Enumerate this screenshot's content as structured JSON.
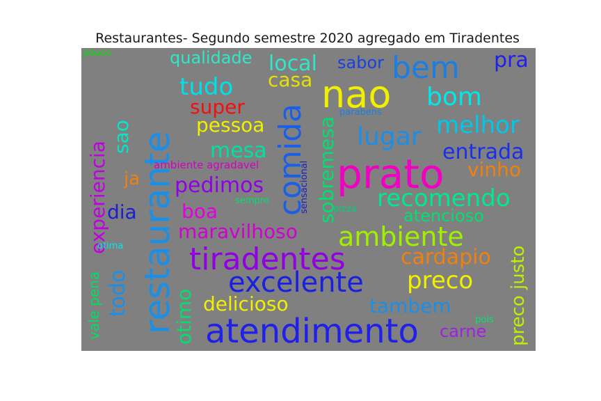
{
  "title": "Restaurantes- Segundo semestre 2020 agregado em Tiradentes",
  "cloud_background": "#808080",
  "words": [
    {
      "text": "pouco",
      "color": "#00e000"
    },
    {
      "text": "qualidade",
      "color": "#2ee8c8"
    },
    {
      "text": "local",
      "color": "#2ee8c8"
    },
    {
      "text": "sabor",
      "color": "#1a40e0"
    },
    {
      "text": "bem",
      "color": "#1a7fe0"
    },
    {
      "text": "pra",
      "color": "#2020e8"
    },
    {
      "text": "restaurante",
      "color": "#1a8fe8"
    },
    {
      "text": "casa",
      "color": "#e8e000"
    },
    {
      "text": "nao",
      "color": "#f0f000"
    },
    {
      "text": "tudo",
      "color": "#00e0e8"
    },
    {
      "text": "bom",
      "color": "#00e8e8"
    },
    {
      "text": "super",
      "color": "#f01010"
    },
    {
      "text": "comida",
      "color": "#1a5fe8"
    },
    {
      "text": "parabens",
      "color": "#1a7fe0"
    },
    {
      "text": "melhor",
      "color": "#00c8e8"
    },
    {
      "text": "experiencia",
      "color": "#c000e0"
    },
    {
      "text": "sao",
      "color": "#00e8c8"
    },
    {
      "text": "pessoa",
      "color": "#f0f000"
    },
    {
      "text": "lugar",
      "color": "#1a8fe8"
    },
    {
      "text": "sobremesa",
      "color": "#00e070"
    },
    {
      "text": "mesa",
      "color": "#00e0a0"
    },
    {
      "text": "entrada",
      "color": "#1a2fe8"
    },
    {
      "text": "sensacional",
      "color": "#1a20c0"
    },
    {
      "text": "ambiente agradavel",
      "color": "#d000c0"
    },
    {
      "text": "prato",
      "color": "#f000c0"
    },
    {
      "text": "vinho",
      "color": "#f08010"
    },
    {
      "text": "ja",
      "color": "#f08010"
    },
    {
      "text": "pedimos",
      "color": "#9000e8"
    },
    {
      "text": "recomendo",
      "color": "#00e890"
    },
    {
      "text": "sempre",
      "color": "#00e070"
    },
    {
      "text": "dia",
      "color": "#1a20d0"
    },
    {
      "text": "boa",
      "color": "#e000e0"
    },
    {
      "text": "pizza",
      "color": "#00d080"
    },
    {
      "text": "atencioso",
      "color": "#00e070"
    },
    {
      "text": "preco justo",
      "color": "#c0f000"
    },
    {
      "text": "maravilhoso",
      "color": "#d000d0"
    },
    {
      "text": "ambiente",
      "color": "#a0f000"
    },
    {
      "text": "vale pena",
      "color": "#00e060"
    },
    {
      "text": "otima",
      "color": "#00e8e8"
    },
    {
      "text": "tiradentes",
      "color": "#9000e0"
    },
    {
      "text": "cardapio",
      "color": "#f08010"
    },
    {
      "text": "todo",
      "color": "#1a8fe8"
    },
    {
      "text": "excelente",
      "color": "#1a20e0"
    },
    {
      "text": "preco",
      "color": "#f0f000"
    },
    {
      "text": "otimo",
      "color": "#00e070"
    },
    {
      "text": "delicioso",
      "color": "#f0f000"
    },
    {
      "text": "tambem",
      "color": "#1a8fe8"
    },
    {
      "text": "pois",
      "color": "#00e870"
    },
    {
      "text": "atendimento",
      "color": "#2020e8"
    },
    {
      "text": "carne",
      "color": "#a020e0"
    }
  ]
}
